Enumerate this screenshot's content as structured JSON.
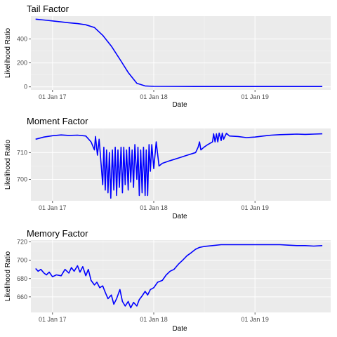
{
  "chart_data": [
    {
      "type": "line",
      "title": "Tail Factor",
      "xlabel": "Date",
      "ylabel": "Likelihood Ratio",
      "xlim": [
        "2016-10-15",
        "2019-10-01"
      ],
      "ylim": [
        -25,
        590
      ],
      "x_ticks": [
        {
          "date": "2017-01-01",
          "label": "01 Jan 17"
        },
        {
          "date": "2018-01-01",
          "label": "01 Jan 18"
        },
        {
          "date": "2019-01-01",
          "label": "01 Jan 19"
        }
      ],
      "y_ticks": [
        {
          "value": 0,
          "label": "0"
        },
        {
          "value": 200,
          "label": "200"
        },
        {
          "value": 400,
          "label": "400"
        }
      ],
      "grid": true,
      "series": [
        {
          "color": "#0000ff",
          "points": [
            [
              "2016-11-01",
              565
            ],
            [
              "2016-12-01",
              558
            ],
            [
              "2017-01-01",
              550
            ],
            [
              "2017-02-01",
              542
            ],
            [
              "2017-03-01",
              535
            ],
            [
              "2017-04-01",
              528
            ],
            [
              "2017-05-01",
              518
            ],
            [
              "2017-06-01",
              495
            ],
            [
              "2017-07-01",
              430
            ],
            [
              "2017-08-01",
              340
            ],
            [
              "2017-09-01",
              230
            ],
            [
              "2017-10-01",
              120
            ],
            [
              "2017-11-01",
              30
            ],
            [
              "2017-12-01",
              8
            ],
            [
              "2018-01-01",
              4
            ],
            [
              "2018-06-01",
              3
            ],
            [
              "2019-01-01",
              3
            ],
            [
              "2019-06-01",
              3
            ],
            [
              "2019-09-01",
              3
            ]
          ]
        }
      ]
    },
    {
      "type": "line",
      "title": "Moment Factor",
      "xlabel": "Date",
      "ylabel": "Likelihood Ratio",
      "xlim": [
        "2016-10-15",
        "2019-10-01"
      ],
      "ylim": [
        692,
        719
      ],
      "x_ticks": [
        {
          "date": "2017-01-01",
          "label": "01 Jan 17"
        },
        {
          "date": "2018-01-01",
          "label": "01 Jan 18"
        },
        {
          "date": "2019-01-01",
          "label": "01 Jan 19"
        }
      ],
      "y_ticks": [
        {
          "value": 700,
          "label": "700"
        },
        {
          "value": 710,
          "label": "710"
        }
      ],
      "grid": true,
      "series": [
        {
          "color": "#0000ff",
          "points": [
            [
              "2016-11-01",
              715
            ],
            [
              "2016-12-01",
              715.8
            ],
            [
              "2017-01-01",
              716.3
            ],
            [
              "2017-02-01",
              716.6
            ],
            [
              "2017-03-01",
              716.4
            ],
            [
              "2017-04-01",
              716.5
            ],
            [
              "2017-05-01",
              716.2
            ],
            [
              "2017-05-20",
              714
            ],
            [
              "2017-06-01",
              711
            ],
            [
              "2017-06-05",
              716
            ],
            [
              "2017-06-12",
              709
            ],
            [
              "2017-06-18",
              715
            ],
            [
              "2017-06-25",
              706
            ],
            [
              "2017-07-01",
              698
            ],
            [
              "2017-07-05",
              712
            ],
            [
              "2017-07-10",
              696
            ],
            [
              "2017-07-15",
              711
            ],
            [
              "2017-07-20",
              695
            ],
            [
              "2017-07-25",
              710
            ],
            [
              "2017-07-30",
              693
            ],
            [
              "2017-08-05",
              711
            ],
            [
              "2017-08-10",
              696
            ],
            [
              "2017-08-15",
              712
            ],
            [
              "2017-08-20",
              694
            ],
            [
              "2017-08-25",
              711
            ],
            [
              "2017-08-30",
              697
            ],
            [
              "2017-09-05",
              712
            ],
            [
              "2017-09-10",
              695
            ],
            [
              "2017-09-15",
              712
            ],
            [
              "2017-09-20",
              698
            ],
            [
              "2017-09-25",
              711
            ],
            [
              "2017-10-01",
              696
            ],
            [
              "2017-10-05",
              712
            ],
            [
              "2017-10-10",
              699
            ],
            [
              "2017-10-15",
              711
            ],
            [
              "2017-10-20",
              697
            ],
            [
              "2017-10-25",
              713
            ],
            [
              "2017-11-01",
              700
            ],
            [
              "2017-11-05",
              712
            ],
            [
              "2017-11-10",
              694
            ],
            [
              "2017-11-15",
              711
            ],
            [
              "2017-11-20",
              695
            ],
            [
              "2017-11-25",
              712
            ],
            [
              "2017-12-01",
              694
            ],
            [
              "2017-12-05",
              711
            ],
            [
              "2017-12-10",
              694
            ],
            [
              "2017-12-15",
              713
            ],
            [
              "2017-12-20",
              703
            ],
            [
              "2017-12-25",
              713
            ],
            [
              "2018-01-01",
              704
            ],
            [
              "2018-01-10",
              714
            ],
            [
              "2018-01-20",
              705
            ],
            [
              "2018-02-01",
              706
            ],
            [
              "2018-03-01",
              707
            ],
            [
              "2018-04-01",
              708
            ],
            [
              "2018-05-01",
              709
            ],
            [
              "2018-06-01",
              710
            ],
            [
              "2018-06-10",
              712
            ],
            [
              "2018-06-15",
              714
            ],
            [
              "2018-06-20",
              711
            ],
            [
              "2018-07-01",
              712
            ],
            [
              "2018-07-15",
              713
            ],
            [
              "2018-08-01",
              714
            ],
            [
              "2018-08-05",
              717
            ],
            [
              "2018-08-10",
              714
            ],
            [
              "2018-08-15",
              717
            ],
            [
              "2018-08-20",
              714
            ],
            [
              "2018-08-25",
              717.3
            ],
            [
              "2018-09-01",
              714.5
            ],
            [
              "2018-09-05",
              717.3
            ],
            [
              "2018-09-10",
              715
            ],
            [
              "2018-09-20",
              717.2
            ],
            [
              "2018-10-01",
              716.2
            ],
            [
              "2018-11-01",
              716
            ],
            [
              "2018-12-01",
              715.6
            ],
            [
              "2019-01-01",
              715.8
            ],
            [
              "2019-02-01",
              716.2
            ],
            [
              "2019-03-01",
              716.5
            ],
            [
              "2019-04-01",
              716.7
            ],
            [
              "2019-05-01",
              716.8
            ],
            [
              "2019-06-01",
              716.9
            ],
            [
              "2019-07-01",
              716.8
            ],
            [
              "2019-08-01",
              716.9
            ],
            [
              "2019-09-01",
              717
            ]
          ]
        }
      ]
    },
    {
      "type": "line",
      "title": "Memory Factor",
      "xlabel": "Date",
      "ylabel": "Likelihood Ratio",
      "xlim": [
        "2016-10-15",
        "2019-10-01"
      ],
      "ylim": [
        643,
        722
      ],
      "x_ticks": [
        {
          "date": "2017-01-01",
          "label": "01 Jan 17"
        },
        {
          "date": "2018-01-01",
          "label": "01 Jan 18"
        },
        {
          "date": "2019-01-01",
          "label": "01 Jan 19"
        }
      ],
      "y_ticks": [
        {
          "value": 660,
          "label": "660"
        },
        {
          "value": 680,
          "label": "680"
        },
        {
          "value": 700,
          "label": "700"
        },
        {
          "value": 720,
          "label": "720"
        }
      ],
      "grid": true,
      "series": [
        {
          "color": "#0000ff",
          "points": [
            [
              "2016-11-01",
              691
            ],
            [
              "2016-11-10",
              688
            ],
            [
              "2016-11-20",
              690
            ],
            [
              "2016-12-01",
              686
            ],
            [
              "2016-12-10",
              684
            ],
            [
              "2016-12-20",
              687
            ],
            [
              "2017-01-01",
              682
            ],
            [
              "2017-01-15",
              684
            ],
            [
              "2017-02-01",
              683
            ],
            [
              "2017-02-15",
              690
            ],
            [
              "2017-03-01",
              686
            ],
            [
              "2017-03-10",
              692
            ],
            [
              "2017-03-20",
              688
            ],
            [
              "2017-04-01",
              694
            ],
            [
              "2017-04-10",
              687
            ],
            [
              "2017-04-20",
              693
            ],
            [
              "2017-05-01",
              683
            ],
            [
              "2017-05-10",
              690
            ],
            [
              "2017-05-20",
              678
            ],
            [
              "2017-06-01",
              673
            ],
            [
              "2017-06-10",
              676
            ],
            [
              "2017-06-20",
              670
            ],
            [
              "2017-07-01",
              672
            ],
            [
              "2017-07-10",
              665
            ],
            [
              "2017-07-20",
              658
            ],
            [
              "2017-08-01",
              662
            ],
            [
              "2017-08-10",
              652
            ],
            [
              "2017-08-20",
              658
            ],
            [
              "2017-09-01",
              668
            ],
            [
              "2017-09-10",
              655
            ],
            [
              "2017-09-20",
              650
            ],
            [
              "2017-10-01",
              655
            ],
            [
              "2017-10-10",
              648
            ],
            [
              "2017-10-20",
              654
            ],
            [
              "2017-11-01",
              650
            ],
            [
              "2017-11-10",
              657
            ],
            [
              "2017-11-20",
              661
            ],
            [
              "2017-12-01",
              666
            ],
            [
              "2017-12-10",
              662
            ],
            [
              "2017-12-20",
              668
            ],
            [
              "2018-01-01",
              670
            ],
            [
              "2018-01-15",
              676
            ],
            [
              "2018-02-01",
              678
            ],
            [
              "2018-02-15",
              684
            ],
            [
              "2018-03-01",
              688
            ],
            [
              "2018-03-15",
              690
            ],
            [
              "2018-04-01",
              696
            ],
            [
              "2018-04-15",
              700
            ],
            [
              "2018-05-01",
              705
            ],
            [
              "2018-05-15",
              708
            ],
            [
              "2018-06-01",
              712
            ],
            [
              "2018-06-15",
              714
            ],
            [
              "2018-07-01",
              715
            ],
            [
              "2018-08-01",
              716
            ],
            [
              "2018-09-01",
              717
            ],
            [
              "2018-10-01",
              717
            ],
            [
              "2018-11-01",
              717
            ],
            [
              "2018-12-01",
              717
            ],
            [
              "2019-01-01",
              717
            ],
            [
              "2019-02-01",
              717
            ],
            [
              "2019-03-01",
              717
            ],
            [
              "2019-04-01",
              717
            ],
            [
              "2019-05-01",
              716.5
            ],
            [
              "2019-06-01",
              716
            ],
            [
              "2019-07-01",
              716
            ],
            [
              "2019-08-01",
              715.5
            ],
            [
              "2019-09-01",
              716
            ]
          ]
        }
      ]
    }
  ]
}
